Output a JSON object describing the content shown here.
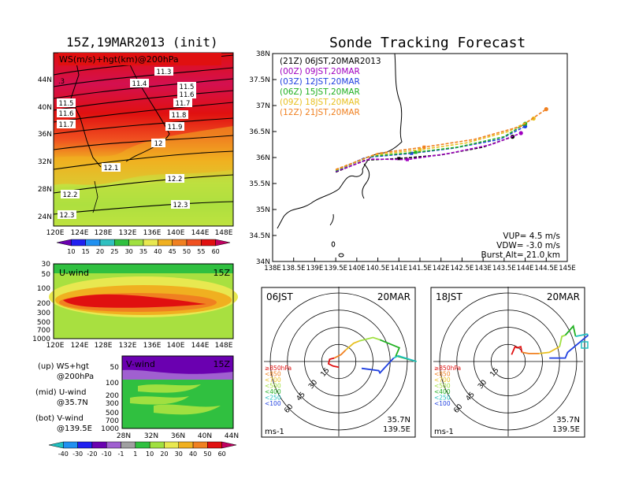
{
  "left": {
    "title": "15Z,19MAR2013 (init)",
    "map_panel": {
      "label": "WS(m/s)+hgt(km)@200hPa",
      "lat_ticks": [
        "44N",
        "40N",
        "36N",
        "32N",
        "28N",
        "24N"
      ],
      "lon_ticks": [
        "120E",
        "124E",
        "128E",
        "132E",
        "136E",
        "140E",
        "144E",
        "148E"
      ],
      "contour_labels": [
        "11.3",
        "11.4",
        "11.5",
        "11.6",
        "11.7",
        "11.8",
        "11.9",
        "12",
        "12.1",
        "12.2",
        "12.3",
        ".3"
      ],
      "colorbar_ticks": [
        "10",
        "15",
        "20",
        "25",
        "30",
        "35",
        "40",
        "45",
        "50",
        "55",
        "60"
      ],
      "colorbar_colors": [
        "#6a00b0",
        "#2020f0",
        "#2090f0",
        "#30c0c0",
        "#30c040",
        "#a0e040",
        "#e8e850",
        "#f0b020",
        "#f08020",
        "#f05020",
        "#e01010",
        "#c00060"
      ]
    },
    "u_panel": {
      "label": "U-wind",
      "time": "15Z",
      "p_ticks": [
        "30",
        "50",
        "100",
        "200",
        "300",
        "500",
        "700",
        "1000"
      ],
      "lon_ticks": [
        "120E",
        "124E",
        "128E",
        "132E",
        "136E",
        "140E",
        "144E",
        "148E"
      ]
    },
    "v_panel": {
      "label": "V-wind",
      "time": "15Z",
      "p_ticks": [
        "50",
        "100",
        "200",
        "300",
        "500",
        "700",
        "1000"
      ],
      "lat_ticks": [
        "28N",
        "32N",
        "36N",
        "40N",
        "44N"
      ]
    },
    "legend": [
      {
        "head": "(up) WS+hgt",
        "sub": "@200hPa"
      },
      {
        "head": "(mid) U-wind",
        "sub": "@35.7N"
      },
      {
        "head": "(bot) V-wind",
        "sub": "@139.5E"
      }
    ],
    "bottom_colorbar_ticks": [
      "-40",
      "-30",
      "-20",
      "-10",
      "-1",
      "1",
      "10",
      "20",
      "30",
      "40",
      "50",
      "60"
    ],
    "bottom_colorbar_colors": [
      "#20c0c0",
      "#2090f0",
      "#2020f0",
      "#6a00b0",
      "#a060d0",
      "#a0a0a0",
      "#30c040",
      "#a0e040",
      "#e8e850",
      "#f0b020",
      "#f08020",
      "#e01010",
      "#c00060"
    ]
  },
  "tracking": {
    "title": "Sonde Tracking Forecast",
    "lat_ticks": [
      "38N",
      "37.5N",
      "37N",
      "36.5N",
      "36N",
      "35.5N",
      "35N",
      "34.5N",
      "34N"
    ],
    "lon_ticks": [
      "138E",
      "138.5E",
      "139E",
      "139.5E",
      "140E",
      "140.5E",
      "141E",
      "141.5E",
      "142E",
      "142.5E",
      "143E",
      "143.5E",
      "144E",
      "144.5E",
      "145E"
    ],
    "runs": [
      {
        "text": "(21Z)  06JST,20MAR2013",
        "color": "#000000"
      },
      {
        "text": "(00Z)  09JST,20MAR",
        "color": "#a000c0"
      },
      {
        "text": "(03Z)  12JST,20MAR",
        "color": "#2040e0"
      },
      {
        "text": "(06Z)  15JST,20MAR",
        "color": "#20b020"
      },
      {
        "text": "(09Z)  18JST,20MAR",
        "color": "#e8c020"
      },
      {
        "text": "(12Z)  21JST,20MAR",
        "color": "#f08020"
      }
    ],
    "info": [
      "VUP= 4.5 m/s",
      "VDW= -3.0 m/s",
      "Burst Alt= 21.0 km"
    ]
  },
  "chart_data": [
    {
      "type": "line",
      "title": "Sonde Tracking Forecast",
      "xlim": [
        138,
        145
      ],
      "ylim": [
        34,
        38
      ],
      "series": [
        {
          "name": "(21Z)  06JST,20MAR2013",
          "x": [
            139.5,
            140.2,
            141.0,
            142.0,
            143.0,
            143.7
          ],
          "y": [
            35.72,
            35.95,
            35.98,
            36.05,
            36.2,
            36.4
          ]
        },
        {
          "name": "(00Z)  09JST,20MAR",
          "x": [
            139.5,
            140.3,
            141.2,
            142.2,
            143.2,
            143.9
          ],
          "y": [
            35.73,
            35.97,
            35.96,
            36.08,
            36.25,
            36.47
          ]
        },
        {
          "name": "(03Z)  12JST,20MAR",
          "x": [
            139.5,
            140.2,
            141.3,
            142.3,
            143.4,
            144.0
          ],
          "y": [
            35.74,
            36.0,
            36.08,
            36.18,
            36.35,
            36.6
          ]
        },
        {
          "name": "(06Z)  15JST,20MAR",
          "x": [
            139.5,
            140.3,
            141.4,
            142.4,
            143.5,
            144.0
          ],
          "y": [
            35.75,
            36.02,
            36.1,
            36.2,
            36.4,
            36.65
          ]
        },
        {
          "name": "(09Z)  18JST,20MAR",
          "x": [
            139.5,
            140.4,
            141.5,
            142.6,
            143.6,
            144.2
          ],
          "y": [
            35.76,
            36.05,
            36.15,
            36.28,
            36.5,
            36.75
          ]
        },
        {
          "name": "(12Z)  21JST,20MAR",
          "x": [
            139.5,
            140.5,
            141.6,
            142.8,
            143.9,
            144.5
          ],
          "y": [
            35.77,
            36.08,
            36.2,
            36.35,
            36.6,
            36.93
          ]
        }
      ]
    },
    {
      "type": "line",
      "title": "06JST 20MAR",
      "location": [
        "35.7N",
        "139.5E"
      ],
      "unit": "ms-1",
      "ring_labels": [
        "15",
        "30",
        "45",
        "60"
      ],
      "legend": [
        {
          "text": "≥850hPa",
          "color": "#e01010"
        },
        {
          "text": "<850",
          "color": "#f08020"
        },
        {
          "text": "<700",
          "color": "#e8c020"
        },
        {
          "text": "<500",
          "color": "#a0e040"
        },
        {
          "text": "<400",
          "color": "#20b020"
        },
        {
          "text": "<250",
          "color": "#20c0c0"
        },
        {
          "text": "<100",
          "color": "#2040e0"
        }
      ],
      "series": [
        {
          "name": "≥850hPa",
          "color": "#e01010",
          "x": [
            0,
            -5,
            -9,
            -8,
            -4
          ],
          "y": [
            -5,
            -4,
            -2,
            2,
            3
          ]
        },
        {
          "name": "<850",
          "color": "#f08020",
          "x": [
            -4,
            2,
            6
          ],
          "y": [
            3,
            6,
            10
          ]
        },
        {
          "name": "<700",
          "color": "#e8c020",
          "x": [
            6,
            13,
            18
          ],
          "y": [
            10,
            16,
            18
          ]
        },
        {
          "name": "<500",
          "color": "#a0e040",
          "x": [
            18,
            30,
            36
          ],
          "y": [
            18,
            21,
            19
          ]
        },
        {
          "name": "<400",
          "color": "#20b020",
          "x": [
            36,
            53,
            50,
            68
          ],
          "y": [
            19,
            12,
            5,
            0
          ]
        },
        {
          "name": "<250",
          "color": "#20c0c0",
          "x": [
            68,
            52,
            48
          ],
          "y": [
            0,
            5,
            3
          ]
        },
        {
          "name": "<100",
          "color": "#2040e0",
          "x": [
            48,
            36,
            35,
            20
          ],
          "y": [
            3,
            -10,
            -8,
            -6
          ]
        }
      ]
    },
    {
      "type": "line",
      "title": "18JST 20MAR",
      "location": [
        "35.7N",
        "139.5E"
      ],
      "unit": "ms-1",
      "ring_labels": [
        "15",
        "30",
        "45",
        "60"
      ],
      "legend": [
        {
          "text": "≥850hPa",
          "color": "#e01010"
        },
        {
          "text": "<850",
          "color": "#f08020"
        },
        {
          "text": "<700",
          "color": "#e8c020"
        },
        {
          "text": "<500",
          "color": "#a0e040"
        },
        {
          "text": "<400",
          "color": "#20b020"
        },
        {
          "text": "<250",
          "color": "#20c0c0"
        },
        {
          "text": "<100",
          "color": "#2040e0"
        }
      ],
      "series": [
        {
          "name": "≥850hPa",
          "color": "#e01010",
          "x": [
            3,
            6,
            8,
            11,
            12
          ],
          "y": [
            6,
            13,
            12,
            13,
            8
          ]
        },
        {
          "name": "<850",
          "color": "#f08020",
          "x": [
            12,
            18,
            27
          ],
          "y": [
            8,
            7,
            7
          ]
        },
        {
          "name": "<700",
          "color": "#e8c020",
          "x": [
            27,
            36,
            45
          ],
          "y": [
            7,
            8,
            13
          ]
        },
        {
          "name": "<500",
          "color": "#a0e040",
          "x": [
            45,
            47,
            50
          ],
          "y": [
            13,
            22,
            23
          ]
        },
        {
          "name": "<400",
          "color": "#20b020",
          "x": [
            50,
            57,
            59
          ],
          "y": [
            23,
            31,
            22
          ]
        },
        {
          "name": "<250",
          "color": "#20c0c0",
          "x": [
            59,
            69,
            70
          ],
          "y": [
            22,
            24,
            23
          ]
        },
        {
          "name": "<100",
          "color": "#2040e0",
          "x": [
            70,
            52,
            50,
            36
          ],
          "y": [
            23,
            8,
            3,
            3
          ]
        }
      ]
    }
  ],
  "hodo1": {
    "time": "06JST",
    "date": "20MAR",
    "lat": "35.7N",
    "lon": "139.5E",
    "unit": "ms-1",
    "ring_labels": [
      "15",
      "30",
      "45",
      "60"
    ],
    "legend": [
      {
        "text": "≥850hPa",
        "color": "#e01010"
      },
      {
        "text": "<850",
        "color": "#f08020"
      },
      {
        "text": "<700",
        "color": "#e8c020"
      },
      {
        "text": "<500",
        "color": "#a0e040"
      },
      {
        "text": "<400",
        "color": "#20b020"
      },
      {
        "text": "<250",
        "color": "#20c0c0"
      },
      {
        "text": "<100",
        "color": "#2040e0"
      }
    ]
  },
  "hodo2": {
    "time": "18JST",
    "date": "20MAR",
    "lat": "35.7N",
    "lon": "139.5E",
    "unit": "ms-1",
    "ring_labels": [
      "15",
      "30",
      "45",
      "60"
    ],
    "legend": [
      {
        "text": "≥850hPa",
        "color": "#e01010"
      },
      {
        "text": "<850",
        "color": "#f08020"
      },
      {
        "text": "<700",
        "color": "#e8c020"
      },
      {
        "text": "<500",
        "color": "#a0e040"
      },
      {
        "text": "<400",
        "color": "#20b020"
      },
      {
        "text": "<250",
        "color": "#20c0c0"
      },
      {
        "text": "<100",
        "color": "#2040e0"
      }
    ]
  }
}
